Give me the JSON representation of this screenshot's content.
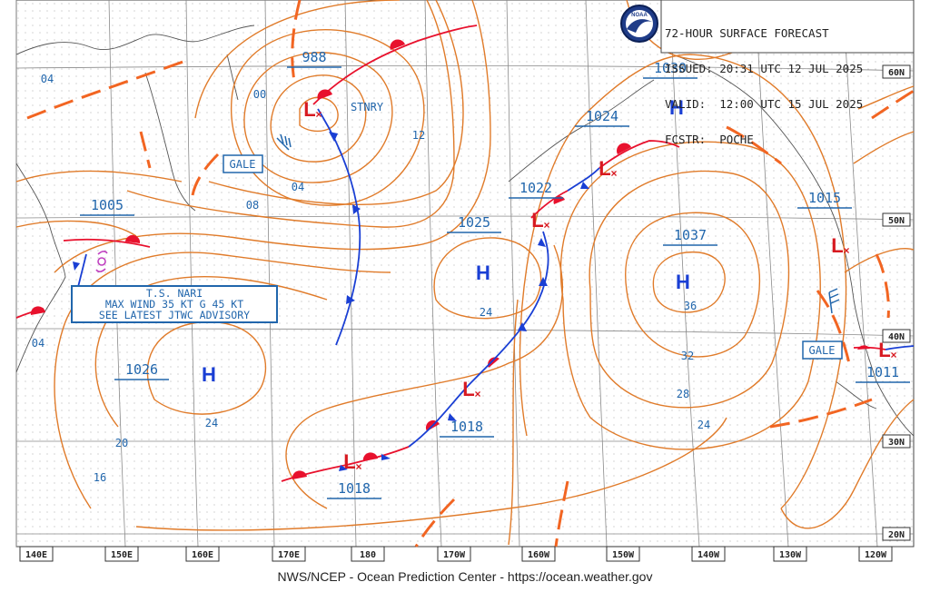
{
  "header": {
    "line1": "72-HOUR SURFACE FORECAST",
    "line2": "ISSUED: 20:31 UTC 12 JUL 2025",
    "line3": "VALID:  12:00 UTC 15 JUL 2025",
    "line4": "FCSTR:  POCHE",
    "logo_text": "NOAA"
  },
  "footer": "NWS/NCEP - Ocean Prediction Center - https://ocean.weather.gov",
  "lon_labels": [
    "140E",
    "150E",
    "160E",
    "170E",
    "180",
    "170W",
    "160W",
    "150W",
    "140W",
    "130W",
    "120W"
  ],
  "lat_labels": [
    "60N",
    "50N",
    "40N",
    "30N",
    "20N"
  ],
  "pressure_centers": [
    {
      "type": "L",
      "value": "988"
    },
    {
      "type": "L",
      "value": "1005"
    },
    {
      "type": "H",
      "value": "1026"
    },
    {
      "type": "H",
      "value": "1025"
    },
    {
      "type": "L",
      "value": "1022"
    },
    {
      "type": "L",
      "value": "1024"
    },
    {
      "type": "H",
      "value": "1030"
    },
    {
      "type": "H",
      "value": "1037"
    },
    {
      "type": "L",
      "value": "1018"
    },
    {
      "type": "L",
      "value": "1018"
    },
    {
      "type": "L",
      "value": "1015"
    },
    {
      "type": "L",
      "value": "1011"
    }
  ],
  "isobar_labels": [
    "04",
    "00",
    "04",
    "08",
    "12",
    "16",
    "20",
    "24",
    "24",
    "24",
    "24",
    "28",
    "32",
    "36",
    "04"
  ],
  "annotations": {
    "gale_west": "GALE",
    "gale_east": "GALE",
    "stationary": "STNRY",
    "storm_box": [
      "T.S. NARI",
      "MAX WIND 35 KT G 45 KT",
      "SEE LATEST JTWC ADVISORY"
    ]
  },
  "colors": {
    "isobar": "#e07b2a",
    "trough": "#f26522",
    "warm_front": "#e8112d",
    "cold_front": "#1a3fd4",
    "text_blue": "#2166ac",
    "center_blue": "#1a3fd4",
    "center_red": "#d71920",
    "grid": "#777777",
    "storm": "#c040c0"
  }
}
